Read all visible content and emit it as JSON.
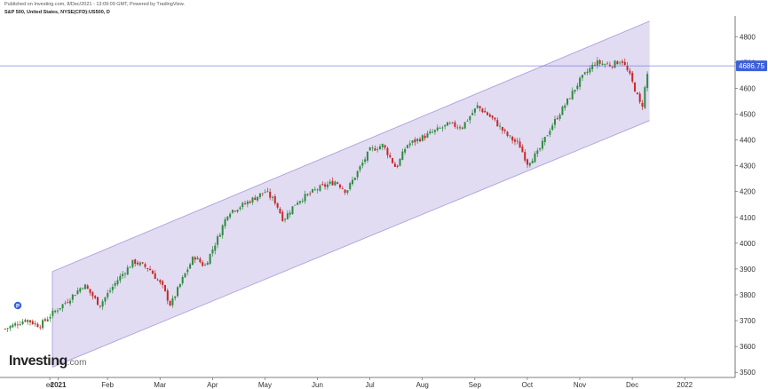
{
  "header": {
    "published": "Published on Investing.com, 8/Dec/2021 - 13:09:09 GMT, Powered by TradingView.",
    "symbol": "S&P 500, United States, NYSE(CFD):US500, D"
  },
  "logo": {
    "name": "Investing",
    "suffix": ".com"
  },
  "marker_label": "P",
  "chart_data": {
    "type": "candlestick",
    "title": "",
    "y_axis": {
      "min": 3480,
      "max": 4880,
      "ticks": [
        3500,
        3600,
        3700,
        3800,
        3900,
        4000,
        4100,
        4200,
        4300,
        4400,
        4500,
        4600,
        4700,
        4800
      ],
      "position": "right"
    },
    "x_axis_labels": [
      {
        "label": "ec",
        "month": -0.1
      },
      {
        "label": "2021",
        "month": 0.06
      },
      {
        "label": "Feb",
        "month": 1.0
      },
      {
        "label": "Mar",
        "month": 2.0
      },
      {
        "label": "Apr",
        "month": 3.0
      },
      {
        "label": "May",
        "month": 4.0
      },
      {
        "label": "Jun",
        "month": 5.0
      },
      {
        "label": "Jul",
        "month": 6.0
      },
      {
        "label": "Aug",
        "month": 7.0
      },
      {
        "label": "Sep",
        "month": 8.0
      },
      {
        "label": "Oct",
        "month": 9.0
      },
      {
        "label": "Nov",
        "month": 10.0
      },
      {
        "label": "Dec",
        "month": 11.0
      },
      {
        "label": "2022",
        "month": 12.0
      }
    ],
    "last_price": 4686.75,
    "last_price_label": "4686.75",
    "channel": {
      "start_month": -0.05,
      "end_month": 11.33,
      "upper_start": 3890,
      "upper_end": 4860,
      "lower_start": 3520,
      "lower_end": 4475,
      "fill": "#dcd6f0",
      "line": "#b4a8de"
    },
    "colors": {
      "up": "#2e8b3e",
      "down": "#c62828",
      "price_line": "#6b6bd6",
      "price_tag": "#3d5fdb"
    },
    "close_path": [
      [
        -0.95,
        3668
      ],
      [
        -0.55,
        3705
      ],
      [
        -0.3,
        3680
      ],
      [
        -0.05,
        3728
      ],
      [
        0.25,
        3780
      ],
      [
        0.55,
        3840
      ],
      [
        0.85,
        3760
      ],
      [
        1.2,
        3860
      ],
      [
        1.5,
        3930
      ],
      [
        1.8,
        3900
      ],
      [
        2.05,
        3830
      ],
      [
        2.2,
        3760
      ],
      [
        2.45,
        3870
      ],
      [
        2.65,
        3950
      ],
      [
        2.85,
        3910
      ],
      [
        3.1,
        4020
      ],
      [
        3.3,
        4120
      ],
      [
        3.6,
        4150
      ],
      [
        4.0,
        4200
      ],
      [
        4.2,
        4160
      ],
      [
        4.35,
        4090
      ],
      [
        4.6,
        4160
      ],
      [
        5.0,
        4210
      ],
      [
        5.35,
        4240
      ],
      [
        5.55,
        4200
      ],
      [
        6.0,
        4360
      ],
      [
        6.25,
        4380
      ],
      [
        6.5,
        4290
      ],
      [
        6.7,
        4380
      ],
      [
        7.0,
        4410
      ],
      [
        7.3,
        4440
      ],
      [
        7.5,
        4460
      ],
      [
        7.75,
        4450
      ],
      [
        8.05,
        4530
      ],
      [
        8.35,
        4480
      ],
      [
        8.6,
        4420
      ],
      [
        8.85,
        4380
      ],
      [
        9.0,
        4310
      ],
      [
        9.2,
        4350
      ],
      [
        9.45,
        4450
      ],
      [
        9.7,
        4530
      ],
      [
        10.0,
        4630
      ],
      [
        10.3,
        4700
      ],
      [
        10.6,
        4690
      ],
      [
        10.8,
        4710
      ],
      [
        10.95,
        4650
      ],
      [
        11.08,
        4580
      ],
      [
        11.18,
        4520
      ],
      [
        11.27,
        4640
      ],
      [
        11.33,
        4686.75
      ]
    ]
  }
}
